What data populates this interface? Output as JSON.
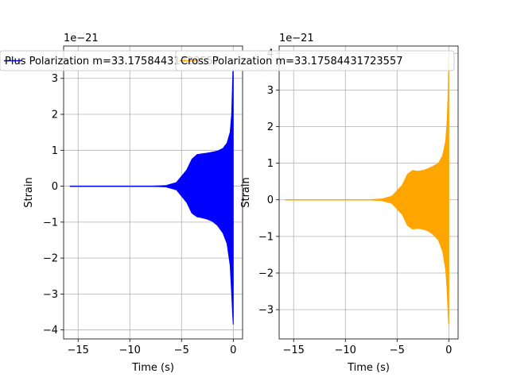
{
  "chart_data": [
    {
      "type": "line",
      "xlabel": "Time (s)",
      "ylabel": "Strain",
      "offset_label": "1e−21",
      "xlim": [
        -16.4,
        0.9
      ],
      "ylim": [
        -4.25,
        3.9
      ],
      "xticks": [
        -15,
        -10,
        -5,
        0
      ],
      "xtick_labels": [
        "−15",
        "−10",
        "−5",
        "0"
      ],
      "yticks": [
        -4,
        -3,
        -2,
        -1,
        0,
        1,
        2,
        3
      ],
      "ytick_labels": [
        "−4",
        "−3",
        "−2",
        "−1",
        "0",
        "1",
        "2",
        "3"
      ],
      "grid": true,
      "legend_placement": "top-right",
      "series": [
        {
          "name": "Plus Polarization m=33.17584431723557",
          "color": "#0000ff",
          "x": [
            -15.8,
            -8.0,
            -6.5,
            -5.5,
            -4.5,
            -4.0,
            -3.5,
            -3.0,
            -2.5,
            -2.0,
            -1.5,
            -1.0,
            -0.6,
            -0.3,
            -0.15,
            -0.05,
            0.0
          ],
          "upper": [
            0.0,
            0.0,
            0.02,
            0.1,
            0.45,
            0.75,
            0.88,
            0.9,
            0.92,
            0.95,
            0.98,
            1.05,
            1.2,
            1.5,
            2.0,
            3.0,
            3.7
          ],
          "lower": [
            0.0,
            0.0,
            -0.02,
            -0.1,
            -0.45,
            -0.75,
            -0.85,
            -0.88,
            -0.92,
            -0.98,
            -1.1,
            -1.3,
            -1.6,
            -2.2,
            -3.0,
            -3.6,
            -3.85
          ]
        }
      ]
    },
    {
      "type": "line",
      "xlabel": "Time (s)",
      "ylabel": "Strain",
      "offset_label": "1e−21",
      "xlim": [
        -16.4,
        0.9
      ],
      "ylim": [
        -3.8,
        4.2
      ],
      "xticks": [
        -15,
        -10,
        -5,
        0
      ],
      "xtick_labels": [
        "−15",
        "−10",
        "−5",
        "0"
      ],
      "yticks": [
        -3,
        -2,
        -1,
        0,
        1,
        2,
        3,
        4
      ],
      "ytick_labels": [
        "−3",
        "−2",
        "−1",
        "0",
        "1",
        "2",
        "3",
        "4"
      ],
      "grid": true,
      "legend_placement": "top-right",
      "series": [
        {
          "name": "Cross Polarization m=33.17584431723557",
          "color": "#ffa500",
          "x": [
            -15.8,
            -8.0,
            -6.5,
            -5.5,
            -4.5,
            -4.0,
            -3.5,
            -3.0,
            -2.5,
            -2.0,
            -1.5,
            -1.0,
            -0.6,
            -0.3,
            -0.15,
            -0.05,
            0.0
          ],
          "upper": [
            0.0,
            0.0,
            0.02,
            0.1,
            0.4,
            0.7,
            0.8,
            0.78,
            0.8,
            0.85,
            0.92,
            1.0,
            1.2,
            1.6,
            2.2,
            3.0,
            4.0
          ],
          "lower": [
            0.0,
            0.0,
            -0.02,
            -0.1,
            -0.4,
            -0.7,
            -0.8,
            -0.78,
            -0.8,
            -0.85,
            -0.95,
            -1.1,
            -1.4,
            -1.9,
            -2.5,
            -3.2,
            -3.4
          ]
        }
      ]
    }
  ]
}
